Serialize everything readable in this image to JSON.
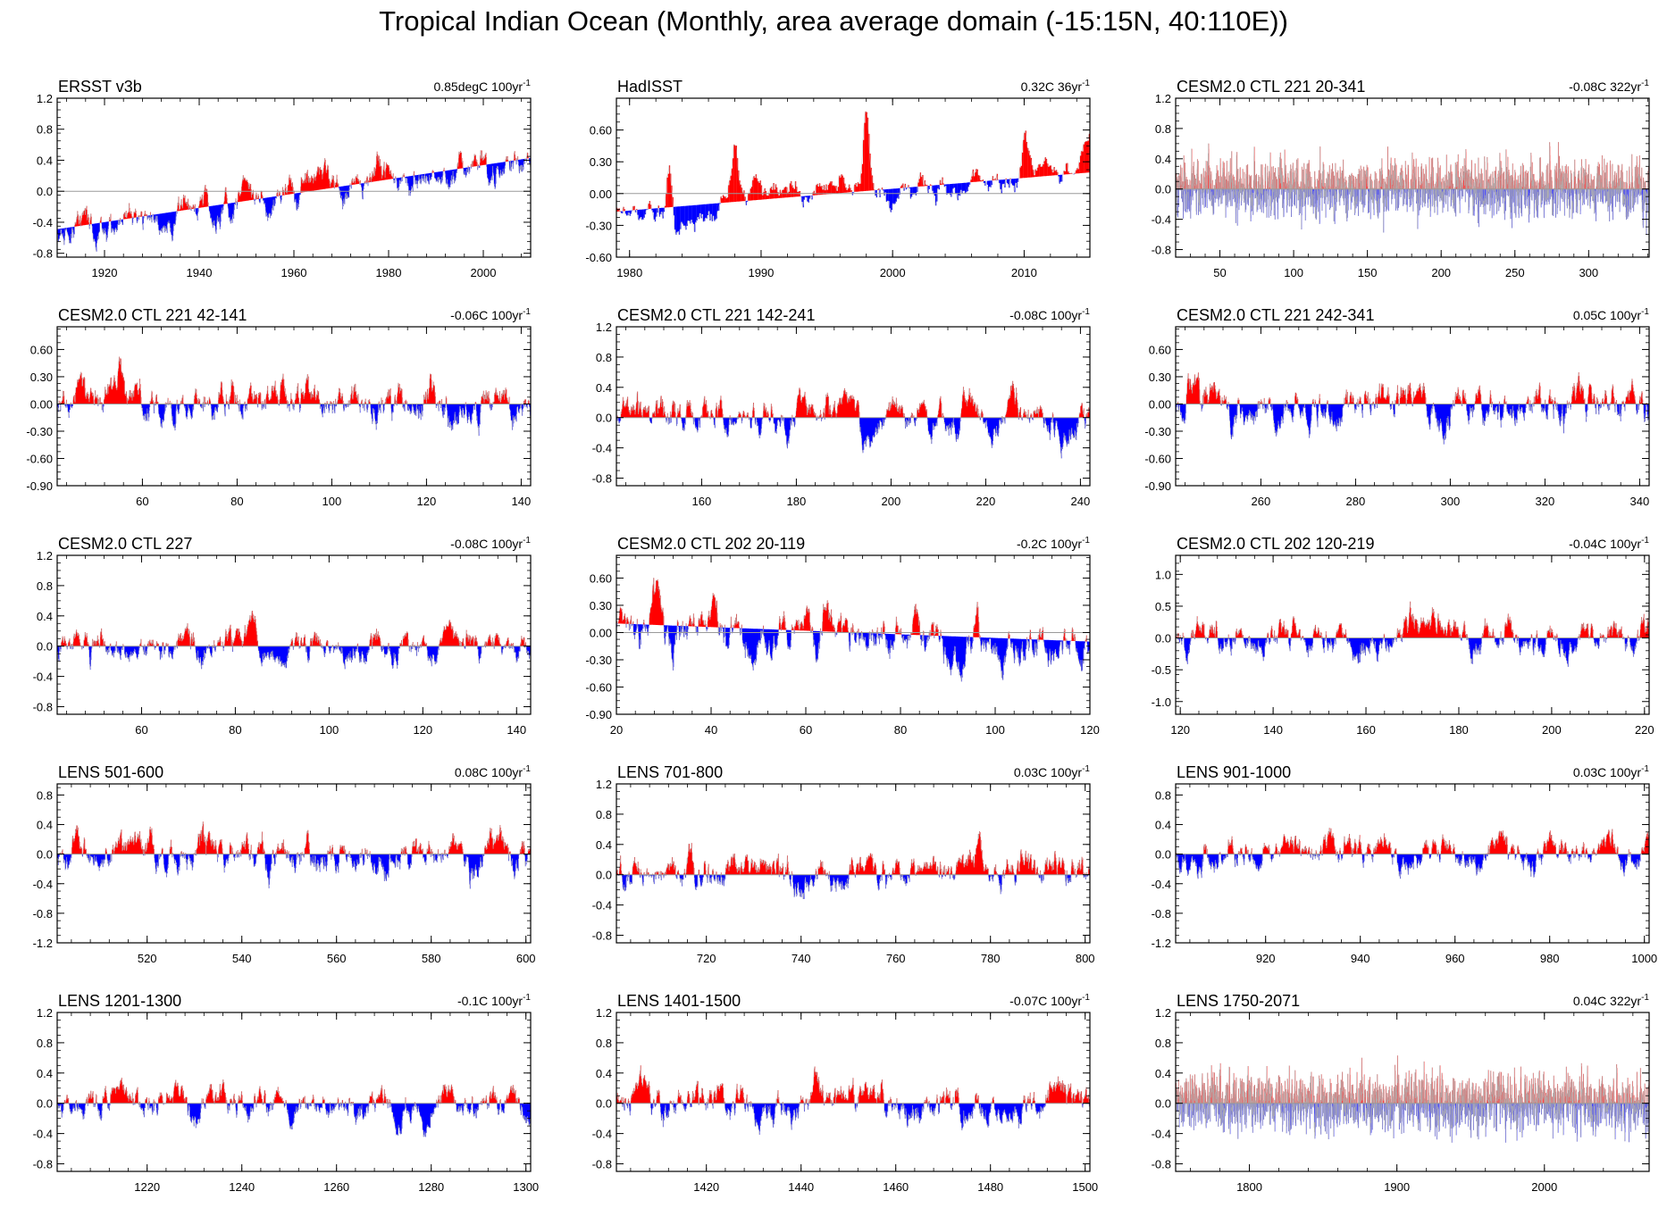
{
  "title": "Tropical Indian Ocean (Monthly, area average domain (-15:15N, 40:110E))",
  "colors": {
    "positive": "#ff0000",
    "negative": "#0000ff",
    "zero_line": "#9a9a9a",
    "frame": "#000000",
    "wiggle": "#b0b0b0"
  },
  "chart_data": [
    {
      "type": "bar",
      "title": "ERSST v3b",
      "trend": "0.85degC 100yr",
      "trend_sup": "-1",
      "xlim": [
        1910,
        2010
      ],
      "xticks": [
        1920,
        1940,
        1960,
        1980,
        2000
      ],
      "ylim": [
        -0.85,
        1.2
      ],
      "yticks": [
        "1.2",
        "0.8",
        "0.4",
        "0.0",
        "-0.4",
        "-0.8"
      ],
      "baseline": [
        -0.49,
        0.43
      ],
      "amp": 0.22,
      "style": "solid",
      "seed": 11
    },
    {
      "type": "bar",
      "title": "HadISST",
      "trend": "0.32C 36yr",
      "trend_sup": "-1",
      "xlim": [
        1979,
        2015
      ],
      "xticks": [
        1980,
        1990,
        2000,
        2010
      ],
      "ylim": [
        -0.6,
        0.9
      ],
      "yticks": [
        "0.60",
        "0.30",
        "0.00",
        "-0.30",
        "-0.60"
      ],
      "baseline": [
        -0.17,
        0.2
      ],
      "amp": 0.18,
      "style": "solid",
      "seed": 12,
      "events": [
        [
          1983,
          0.45
        ],
        [
          1988,
          0.5
        ],
        [
          1998,
          0.78
        ],
        [
          2010,
          0.4
        ]
      ]
    },
    {
      "type": "bar",
      "title": "CESM2.0 CTL 221 20-341",
      "trend": "-0.08C 322yr",
      "trend_sup": "-1",
      "xlim": [
        20,
        341
      ],
      "xticks": [
        50,
        100,
        150,
        200,
        250,
        300
      ],
      "ylim": [
        -0.9,
        1.2
      ],
      "yticks": [
        "1.2",
        "0.8",
        "0.4",
        "0.0",
        "-0.4",
        "-0.8"
      ],
      "baseline": [
        0,
        0
      ],
      "amp": 0.24,
      "style": "dense",
      "seed": 13
    },
    {
      "type": "bar",
      "title": "CESM2.0 CTL 221 42-141",
      "trend": "-0.06C 100yr",
      "trend_sup": "-1",
      "xlim": [
        42,
        142
      ],
      "xticks": [
        60,
        80,
        100,
        120,
        140
      ],
      "ylim": [
        -0.9,
        0.85
      ],
      "yticks": [
        "0.60",
        "0.30",
        "0.00",
        "-0.30",
        "-0.60",
        "-0.90"
      ],
      "baseline": [
        0,
        0
      ],
      "amp": 0.22,
      "style": "solid",
      "seed": 14
    },
    {
      "type": "bar",
      "title": "CESM2.0 CTL 221 142-241",
      "trend": "-0.08C 100yr",
      "trend_sup": "-1",
      "xlim": [
        142,
        242
      ],
      "xticks": [
        160,
        180,
        200,
        220,
        240
      ],
      "ylim": [
        -0.9,
        1.2
      ],
      "yticks": [
        "1.2",
        "0.8",
        "0.4",
        "0.0",
        "-0.4",
        "-0.8"
      ],
      "baseline": [
        0,
        0
      ],
      "amp": 0.24,
      "style": "solid",
      "seed": 15
    },
    {
      "type": "bar",
      "title": "CESM2.0 CTL 221 242-341",
      "trend": "0.05C 100yr",
      "trend_sup": "-1",
      "xlim": [
        242,
        342
      ],
      "xticks": [
        260,
        280,
        300,
        320,
        340
      ],
      "ylim": [
        -0.9,
        0.85
      ],
      "yticks": [
        "0.60",
        "0.30",
        "0.00",
        "-0.30",
        "-0.60",
        "-0.90"
      ],
      "baseline": [
        0,
        0
      ],
      "amp": 0.22,
      "style": "solid",
      "seed": 16
    },
    {
      "type": "bar",
      "title": "CESM2.0 CTL 227",
      "trend": "-0.08C 100yr",
      "trend_sup": "-1",
      "xlim": [
        42,
        143
      ],
      "xticks": [
        60,
        80,
        100,
        120,
        140
      ],
      "ylim": [
        -0.9,
        1.2
      ],
      "yticks": [
        "1.2",
        "0.8",
        "0.4",
        "0.0",
        "-0.4",
        "-0.8"
      ],
      "baseline": [
        0,
        0
      ],
      "amp": 0.22,
      "style": "solid",
      "seed": 17
    },
    {
      "type": "bar",
      "title": "CESM2.0 CTL 202 20-119",
      "trend": "-0.2C 100yr",
      "trend_sup": "-1",
      "xlim": [
        20,
        120
      ],
      "xticks": [
        20,
        40,
        60,
        80,
        100,
        120
      ],
      "ylim": [
        -0.9,
        0.85
      ],
      "yticks": [
        "0.60",
        "0.30",
        "0.00",
        "-0.30",
        "-0.60",
        "-0.90"
      ],
      "baseline": [
        0.1,
        -0.1
      ],
      "amp": 0.24,
      "style": "solid",
      "seed": 18
    },
    {
      "type": "bar",
      "title": "CESM2.0 CTL 202 120-219",
      "trend": "-0.04C 100yr",
      "trend_sup": "-1",
      "xlim": [
        119,
        221
      ],
      "xticks": [
        120,
        140,
        160,
        180,
        200,
        220
      ],
      "ylim": [
        -1.2,
        1.3
      ],
      "yticks": [
        "1.0",
        "0.5",
        "0.0",
        "-0.5",
        "-1.0"
      ],
      "baseline": [
        0,
        0
      ],
      "amp": 0.26,
      "style": "solid",
      "seed": 19
    },
    {
      "type": "bar",
      "title": "LENS 501-600",
      "trend": "0.08C 100yr",
      "trend_sup": "-1",
      "xlim": [
        501,
        601
      ],
      "xticks": [
        520,
        540,
        560,
        580,
        600
      ],
      "ylim": [
        -1.2,
        0.95
      ],
      "yticks": [
        "0.8",
        "0.4",
        "0.0",
        "-0.4",
        "-0.8",
        "-1.2"
      ],
      "baseline": [
        0,
        0
      ],
      "amp": 0.26,
      "style": "solid",
      "seed": 20
    },
    {
      "type": "bar",
      "title": "LENS 701-800",
      "trend": "0.03C 100yr",
      "trend_sup": "-1",
      "xlim": [
        701,
        801
      ],
      "xticks": [
        720,
        740,
        760,
        780,
        800
      ],
      "ylim": [
        -0.9,
        1.2
      ],
      "yticks": [
        "1.2",
        "0.8",
        "0.4",
        "0.0",
        "-0.4",
        "-0.8"
      ],
      "baseline": [
        0,
        0
      ],
      "amp": 0.24,
      "style": "solid",
      "seed": 21
    },
    {
      "type": "bar",
      "title": "LENS 901-1000",
      "trend": "0.03C 100yr",
      "trend_sup": "-1",
      "xlim": [
        901,
        1001
      ],
      "xticks": [
        920,
        940,
        960,
        980,
        1000
      ],
      "ylim": [
        -1.2,
        0.95
      ],
      "yticks": [
        "0.8",
        "0.4",
        "0.0",
        "-0.4",
        "-0.8",
        "-1.2"
      ],
      "baseline": [
        0,
        0
      ],
      "amp": 0.22,
      "style": "solid",
      "seed": 22
    },
    {
      "type": "bar",
      "title": "LENS 1201-1300",
      "trend": "-0.1C 100yr",
      "trend_sup": "-1",
      "xlim": [
        1201,
        1301
      ],
      "xticks": [
        1220,
        1240,
        1260,
        1280,
        1300
      ],
      "ylim": [
        -0.9,
        1.2
      ],
      "yticks": [
        "1.2",
        "0.8",
        "0.4",
        "0.0",
        "-0.4",
        "-0.8"
      ],
      "baseline": [
        0,
        0
      ],
      "amp": 0.22,
      "style": "solid",
      "seed": 23
    },
    {
      "type": "bar",
      "title": "LENS 1401-1500",
      "trend": "-0.07C 100yr",
      "trend_sup": "-1",
      "xlim": [
        1401,
        1501
      ],
      "xticks": [
        1420,
        1440,
        1460,
        1480,
        1500
      ],
      "ylim": [
        -0.9,
        1.2
      ],
      "yticks": [
        "1.2",
        "0.8",
        "0.4",
        "0.0",
        "-0.4",
        "-0.8"
      ],
      "baseline": [
        0,
        0
      ],
      "amp": 0.24,
      "style": "solid",
      "seed": 24
    },
    {
      "type": "bar",
      "title": "LENS 1750-2071",
      "trend": "0.04C 322yr",
      "trend_sup": "-1",
      "xlim": [
        1750,
        2071
      ],
      "xticks": [
        1800,
        1900,
        2000
      ],
      "ylim": [
        -0.9,
        1.2
      ],
      "yticks": [
        "1.2",
        "0.8",
        "0.4",
        "0.0",
        "-0.4",
        "-0.8"
      ],
      "baseline": [
        0,
        0
      ],
      "amp": 0.24,
      "style": "dense",
      "seed": 25
    }
  ]
}
